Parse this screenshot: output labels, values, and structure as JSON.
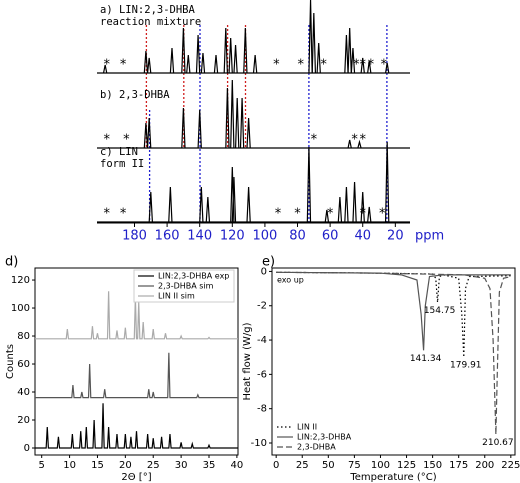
{
  "chart_data": [
    {
      "type": "spectrum",
      "xlim": [
        203,
        11
      ],
      "xticks": [
        180,
        160,
        140,
        120,
        100,
        80,
        60,
        40,
        20
      ],
      "xlabel": "ppm",
      "tick_color": "#2020c8",
      "marker": "*",
      "series": [
        {
          "label": [
            "a) LIN:2,3-DHBA",
            "reaction mixture"
          ],
          "x": [
            198,
            173,
            171,
            157,
            150,
            147,
            141,
            138,
            130,
            124,
            121,
            118,
            112,
            106,
            72,
            70,
            67,
            50,
            48,
            46,
            40,
            36,
            25
          ],
          "values": [
            8,
            22,
            15,
            25,
            45,
            18,
            38,
            20,
            18,
            45,
            35,
            28,
            45,
            18,
            73,
            60,
            30,
            38,
            45,
            25,
            15,
            12,
            10
          ],
          "asterisks": [
            197,
            187,
            93,
            78,
            64,
            44,
            40,
            35,
            27
          ]
        },
        {
          "label": [
            "b) 2,3-DHBA"
          ],
          "x": [
            173,
            171,
            150,
            140,
            123,
            120,
            117,
            114,
            110,
            48,
            42
          ],
          "values": [
            25,
            30,
            40,
            38,
            60,
            68,
            50,
            50,
            30,
            8,
            6
          ],
          "asterisks": [
            197,
            185,
            70,
            45,
            40
          ]
        },
        {
          "label": [
            "c) LIN",
            "form II"
          ],
          "x": [
            170,
            158,
            139,
            135,
            120,
            119,
            110,
            73,
            62,
            54,
            50,
            45,
            40,
            36,
            25
          ],
          "values": [
            30,
            35,
            35,
            25,
            55,
            45,
            35,
            75,
            12,
            25,
            35,
            40,
            30,
            15,
            80
          ],
          "asterisks": [
            197,
            187,
            92,
            80,
            60,
            40,
            28
          ]
        }
      ]
    },
    {
      "type": "line",
      "title": "d)",
      "xlim": [
        3.8,
        40.2
      ],
      "ylim": [
        -5,
        128.6
      ],
      "xticks": [
        5,
        10,
        15,
        20,
        25,
        30,
        35,
        40
      ],
      "yticks": [
        0,
        20,
        40,
        60,
        80,
        100,
        120
      ],
      "xlabel": "2Θ [°]",
      "ylabel": "Counts",
      "legend": "upper right",
      "series": [
        {
          "name": "LIN:2,3-DHBA exp",
          "color": "#000000",
          "linestyle": "solid",
          "x": [
            3.8,
            5.8,
            6,
            6.2,
            7.8,
            8,
            8.2,
            10.3,
            10.5,
            10.7,
            11.8,
            12,
            12.2,
            12.8,
            13,
            13.2,
            14.2,
            14.4,
            14.6,
            15.8,
            16,
            16.2,
            16.8,
            17,
            17.2,
            18.3,
            18.5,
            18.7,
            19.8,
            20,
            20.2,
            20.8,
            21,
            21.2,
            21.8,
            22,
            22.2,
            23.8,
            24,
            24.2,
            24.8,
            25,
            25.2,
            26.3,
            26.5,
            26.7,
            27.8,
            28,
            28.2,
            29.8,
            30,
            30.2,
            31.8,
            32,
            32.2,
            34.8,
            35,
            35.2,
            40.2
          ],
          "values": [
            0,
            0,
            15,
            0,
            0,
            8,
            0,
            0,
            10,
            0,
            0,
            12,
            0,
            0,
            15,
            0,
            0,
            20,
            0,
            0,
            32,
            0,
            0,
            15,
            0,
            0,
            10,
            0,
            0,
            10,
            0,
            0,
            8,
            0,
            0,
            12,
            0,
            0,
            10,
            0,
            0,
            7,
            0,
            0,
            8,
            0,
            0,
            10,
            0,
            0,
            4,
            0,
            0,
            3,
            0,
            0,
            2,
            0,
            0
          ]
        },
        {
          "name": "2,3-DHBA sim",
          "color": "#555555",
          "linestyle": "solid",
          "x": [
            3.8,
            10.4,
            10.6,
            10.8,
            12,
            12.2,
            12.4,
            13.4,
            13.6,
            13.8,
            16.1,
            16.3,
            16.5,
            24,
            24.2,
            24.4,
            24.8,
            25,
            25.2,
            27.6,
            27.8,
            28,
            32.8,
            33,
            33.2,
            40.2
          ],
          "values": [
            36,
            36,
            45,
            36,
            36,
            40,
            36,
            36,
            60,
            36,
            36,
            42,
            36,
            36,
            42,
            36,
            36,
            40,
            36,
            36,
            68,
            36,
            36,
            38,
            36,
            36
          ]
        },
        {
          "name": "LIN II sim",
          "color": "#aaaaaa",
          "linestyle": "solid",
          "x": [
            3.8,
            9.4,
            9.6,
            9.8,
            13.9,
            14.1,
            14.3,
            14.8,
            15,
            15.2,
            16.8,
            17,
            17.2,
            18.3,
            18.5,
            18.7,
            19.8,
            20,
            20.2,
            21.6,
            21.8,
            22,
            22.2,
            22.4,
            22.6,
            23,
            23.2,
            23.4,
            24.8,
            25,
            25.2,
            27,
            27.2,
            27.4,
            29.8,
            30,
            30.2,
            34.8,
            35,
            35.2,
            40.2
          ],
          "values": [
            78,
            78,
            85,
            78,
            78,
            87,
            78,
            78,
            82,
            78,
            78,
            112,
            78,
            78,
            84,
            78,
            78,
            86,
            78,
            78,
            108,
            78,
            78,
            104,
            78,
            78,
            90,
            78,
            78,
            85,
            78,
            78,
            82,
            78,
            78,
            80,
            78,
            78,
            79,
            78,
            78
          ]
        }
      ]
    },
    {
      "type": "line",
      "title": "e)",
      "xlim": [
        -4,
        229
      ],
      "ylim": [
        -10.7,
        0.2
      ],
      "xticks": [
        0,
        25,
        50,
        75,
        100,
        125,
        150,
        175,
        200,
        225
      ],
      "yticks": [
        0,
        -2,
        -4,
        -6,
        -8,
        -10
      ],
      "xlabel": "Temperature (°C)",
      "ylabel": "Heat flow (W/g)",
      "legend": "lower left",
      "annotation": "exo up",
      "peak_labels": [
        {
          "value": 154.75,
          "label": "154.75"
        },
        {
          "value": 141.34,
          "label": "141.34"
        },
        {
          "value": 179.91,
          "label": "179.91"
        },
        {
          "value": 210.67,
          "label": "210.67"
        }
      ],
      "series": [
        {
          "name": "LIN II",
          "color": "#000000",
          "linestyle": "dotted",
          "x": [
            0,
            100,
            150,
            153,
            154.75,
            156.5,
            160,
            175,
            178,
            179.91,
            181.5,
            185,
            225
          ],
          "values": [
            -0.05,
            -0.1,
            -0.15,
            -0.4,
            -1.8,
            -0.3,
            -0.2,
            -0.4,
            -2.5,
            -5,
            -1,
            -0.3,
            -0.25
          ]
        },
        {
          "name": "LIN:2,3-DHBA",
          "color": "#555555",
          "linestyle": "solid",
          "x": [
            0,
            100,
            120,
            135,
            139,
            141.34,
            143,
            147,
            160,
            225
          ],
          "values": [
            -0.05,
            -0.1,
            -0.2,
            -0.5,
            -2.5,
            -4.6,
            -2,
            -0.3,
            -0.2,
            -0.2
          ]
        },
        {
          "name": "2,3-DHBA",
          "color": "#555555",
          "linestyle": "dashed",
          "x": [
            0,
            100,
            180,
            200,
            205,
            208,
            210.67,
            212,
            214,
            218,
            225
          ],
          "values": [
            -0.05,
            -0.1,
            -0.2,
            -0.4,
            -1,
            -4,
            -9.5,
            -6,
            -1.2,
            -0.4,
            -0.3
          ]
        }
      ]
    }
  ]
}
